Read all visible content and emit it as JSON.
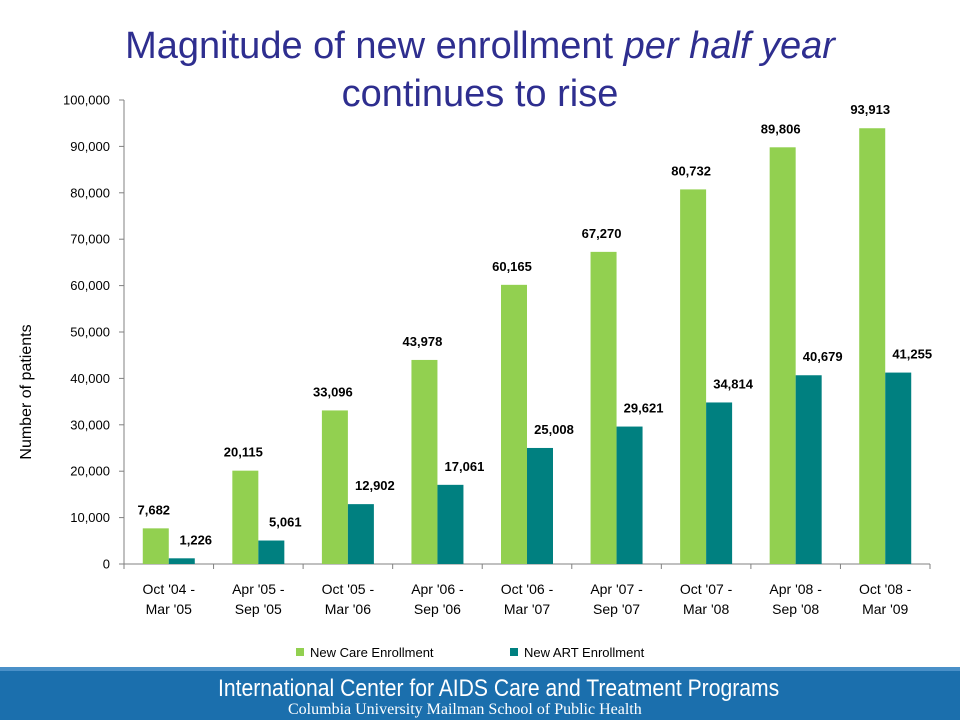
{
  "title": {
    "line1_plain": "Magnitude of new enrollment ",
    "line1_italic": "per half year",
    "line2": "continues to rise"
  },
  "chart_data": {
    "type": "bar",
    "title": "",
    "xlabel": "",
    "ylabel": "Number of patients",
    "ylim": [
      0,
      100000
    ],
    "yticks": [
      "0",
      "10,000",
      "20,000",
      "30,000",
      "40,000",
      "50,000",
      "60,000",
      "70,000",
      "80,000",
      "90,000",
      "100,000"
    ],
    "categories": [
      [
        "Oct '04 -",
        "Mar '05"
      ],
      [
        "Apr '05 -",
        "Sep '05"
      ],
      [
        "Oct '05 -",
        "Mar '06"
      ],
      [
        "Apr '06 -",
        "Sep '06"
      ],
      [
        "Oct '06 -",
        "Mar '07"
      ],
      [
        "Apr '07 -",
        "Sep '07"
      ],
      [
        "Oct '07 -",
        "Mar '08"
      ],
      [
        "Apr '08 -",
        "Sep '08"
      ],
      [
        "Oct '08 -",
        "Mar '09"
      ]
    ],
    "series": [
      {
        "name": "New Care Enrollment",
        "color": "#92d050",
        "values": [
          7682,
          20115,
          33096,
          43978,
          60165,
          67270,
          80732,
          89806,
          93913
        ],
        "labels": [
          "7,682",
          "20,115",
          "33,096",
          "43,978",
          "60,165",
          "67,270",
          "80,732",
          "89,806",
          "93,913"
        ]
      },
      {
        "name": "New ART Enrollment",
        "color": "#008080",
        "values": [
          1226,
          5061,
          12902,
          17061,
          25008,
          29621,
          34814,
          40679,
          41255
        ],
        "labels": [
          "1,226",
          "5,061",
          "12,902",
          "17,061",
          "25,008",
          "29,621",
          "34,814",
          "40,679",
          "41,255"
        ]
      }
    ],
    "grid": false,
    "legend_position": "bottom"
  },
  "footer": {
    "line1": "International Center for AIDS Care and Treatment Programs",
    "line2": "Columbia University Mailman School of Public Health"
  }
}
